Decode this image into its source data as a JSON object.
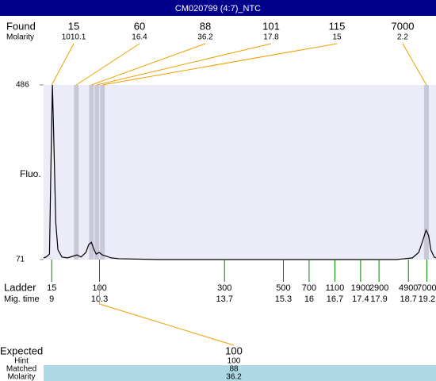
{
  "header": {
    "title": "CM020799 (4:7)_NTC"
  },
  "found": {
    "label": "Found",
    "molarity_label": "Molarity",
    "peaks": [
      {
        "size": 15,
        "molarity": 1010.1,
        "time": 9.0
      },
      {
        "size": 60,
        "molarity": 16.4,
        "time": 9.67
      },
      {
        "size": 88,
        "molarity": 36.2,
        "time": 10.08
      },
      {
        "size": 101,
        "molarity": 17.8,
        "time": 10.23
      },
      {
        "size": 115,
        "molarity": 15,
        "time": 10.38
      },
      {
        "size": 7000,
        "molarity": 2.2,
        "time": 19.19
      }
    ]
  },
  "chart_data": {
    "type": "line",
    "y_label": "Fluo.",
    "ylim": [
      71,
      486
    ],
    "yticks": [
      71,
      486
    ],
    "xlim": [
      8.78,
      19.45
    ],
    "background": "#ececf9",
    "color": "#000000",
    "x": [
      8.78,
      8.85,
      8.94,
      8.98,
      9.02,
      9.06,
      9.11,
      9.17,
      9.28,
      9.43,
      9.58,
      9.69,
      9.8,
      9.93,
      10.01,
      10.08,
      10.14,
      10.21,
      10.29,
      10.38,
      10.49,
      10.62,
      10.83,
      11.91,
      14.06,
      16.22,
      18.38,
      18.81,
      18.98,
      19.09,
      19.18,
      19.25,
      19.31,
      19.4,
      19.45
    ],
    "values": [
      75,
      77,
      84,
      297,
      486,
      348,
      160,
      94,
      77,
      75,
      79,
      82,
      77,
      88,
      107,
      112,
      97,
      84,
      88,
      82,
      79,
      75,
      73,
      71,
      71,
      71,
      71,
      75,
      88,
      116,
      141,
      128,
      94,
      77,
      75
    ]
  },
  "ladder": {
    "label": "Ladder",
    "time_label": "Mig. time",
    "items": [
      {
        "size": 15,
        "time": 9
      },
      {
        "size": 100,
        "time": 10.3
      },
      {
        "size": 300,
        "time": 13.7
      },
      {
        "size": 500,
        "time": 15.3
      },
      {
        "size": 700,
        "time": 16
      },
      {
        "size": 1100,
        "time": 16.7
      },
      {
        "size": 1900,
        "time": 17.4
      },
      {
        "size": 2900,
        "time": 17.9
      },
      {
        "size": 4900,
        "time": 18.7
      },
      {
        "size": 7000,
        "time": 19.2
      }
    ]
  },
  "expected": {
    "label": "Expected",
    "value": 100,
    "ladder_index": 1,
    "rows": [
      {
        "label": "Hint",
        "value": 100
      },
      {
        "label": "Matched",
        "value": 88
      },
      {
        "label": "Molarity",
        "value": 36.2
      }
    ]
  }
}
